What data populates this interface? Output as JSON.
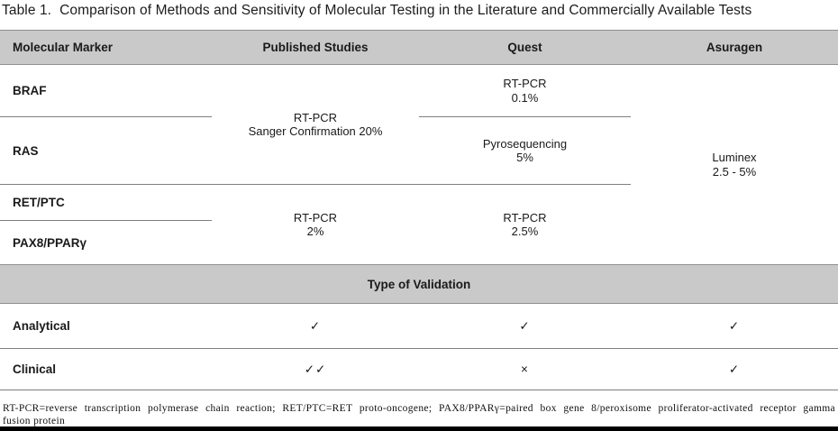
{
  "title": {
    "label": "Table 1.",
    "caption": "Comparison of Methods and Sensitivity of Molecular Testing in the Literature and Commercially Available Tests"
  },
  "columns": {
    "marker": "Molecular Marker",
    "published": "Published Studies",
    "quest": "Quest",
    "asuragen": "Asuragen"
  },
  "markers": {
    "braf": "BRAF",
    "ras": "RAS",
    "retptc": "RET/PTC",
    "pax8": "PAX8/PPARγ"
  },
  "methods": {
    "published_braf_ras": {
      "line1": "RT-PCR",
      "line2": "Sanger Confirmation 20%"
    },
    "quest_braf": {
      "line1": "RT-PCR",
      "line2": "0.1%"
    },
    "quest_ras": {
      "line1": "Pyrosequencing",
      "line2": "5%"
    },
    "published_retptc_pax8": {
      "line1": "RT-PCR",
      "line2": "2%"
    },
    "quest_retptc_pax8": {
      "line1": "RT-PCR",
      "line2": "2.5%"
    },
    "asuragen_all": {
      "line1": "Luminex",
      "line2": "2.5 - 5%"
    }
  },
  "validation": {
    "header": "Type of Validation",
    "analytical": {
      "label": "Analytical",
      "published": "✓",
      "quest": "✓",
      "asuragen": "✓"
    },
    "clinical": {
      "label": "Clinical",
      "published": "✓✓",
      "quest": "×",
      "asuragen": "✓"
    }
  },
  "footnote": {
    "line1": "RT-PCR=reverse transcription polymerase chain reaction; RET/PTC=RET proto-oncogene; PAX8/PPARγ=paired box gene 8/peroxisome proliferator-activated receptor gamma",
    "line2": "fusion protein"
  },
  "colors": {
    "band_gray": "#c9c9c9",
    "rule_gray": "#7f7f7f",
    "bottom_bar": "#000000"
  }
}
